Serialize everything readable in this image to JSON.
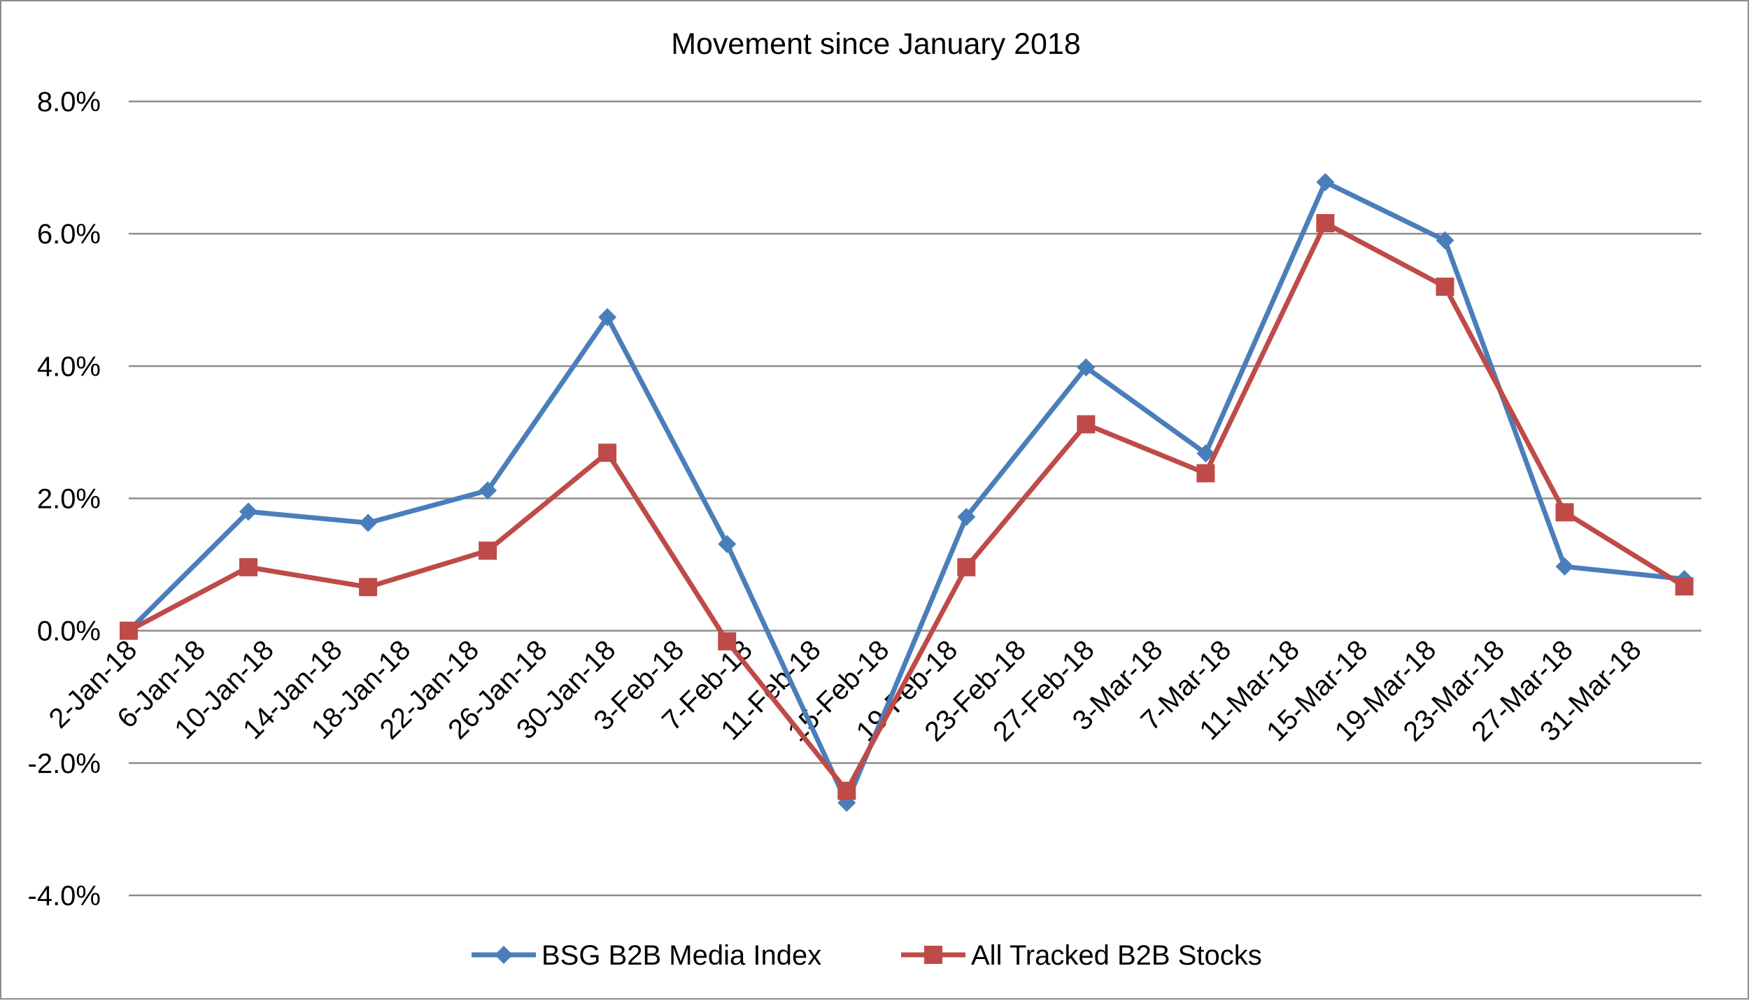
{
  "chart_data": {
    "type": "line",
    "title": "Movement since January 2018",
    "xlabel": "",
    "ylabel": "",
    "ylim": [
      -0.04,
      0.08
    ],
    "y_ticks": [
      -0.04,
      -0.02,
      0.0,
      0.02,
      0.04,
      0.06,
      0.08
    ],
    "y_tick_labels": [
      "-4.0%",
      "-2.0%",
      "0.0%",
      "2.0%",
      "4.0%",
      "6.0%",
      "8.0%"
    ],
    "x_axis_type": "date",
    "x_range": [
      "2018-01-02",
      "2018-04-04"
    ],
    "x_tick_dates": [
      "2018-01-02",
      "2018-01-06",
      "2018-01-10",
      "2018-01-14",
      "2018-01-18",
      "2018-01-22",
      "2018-01-26",
      "2018-01-30",
      "2018-02-03",
      "2018-02-07",
      "2018-02-11",
      "2018-02-15",
      "2018-02-19",
      "2018-02-23",
      "2018-02-27",
      "2018-03-03",
      "2018-03-07",
      "2018-03-11",
      "2018-03-15",
      "2018-03-19",
      "2018-03-23",
      "2018-03-27",
      "2018-03-31"
    ],
    "x_tick_labels": [
      "2-Jan-18",
      "6-Jan-18",
      "10-Jan-18",
      "14-Jan-18",
      "18-Jan-18",
      "22-Jan-18",
      "26-Jan-18",
      "30-Jan-18",
      "3-Feb-18",
      "7-Feb-18",
      "11-Feb-18",
      "15-Feb-18",
      "19-Feb-18",
      "23-Feb-18",
      "27-Feb-18",
      "3-Mar-18",
      "7-Mar-18",
      "11-Mar-18",
      "15-Mar-18",
      "19-Mar-18",
      "23-Mar-18",
      "27-Mar-18",
      "31-Mar-18"
    ],
    "grid": true,
    "legend_position": "bottom",
    "x": [
      "2018-01-02",
      "2018-01-09",
      "2018-01-16",
      "2018-01-23",
      "2018-01-30",
      "2018-02-06",
      "2018-02-13",
      "2018-02-20",
      "2018-02-27",
      "2018-03-06",
      "2018-03-13",
      "2018-03-20",
      "2018-03-27",
      "2018-04-03"
    ],
    "series": [
      {
        "name": "BSG B2B Media Index",
        "color": "#4a7ebb",
        "marker": "diamond",
        "values": [
          0.0,
          0.018,
          0.0163,
          0.0212,
          0.0474,
          0.0131,
          -0.026,
          0.0172,
          0.0398,
          0.0268,
          0.0678,
          0.059,
          0.0097,
          0.0078
        ]
      },
      {
        "name": "All Tracked B2B Stocks",
        "color": "#be4b48",
        "marker": "square",
        "values": [
          0.0,
          0.0096,
          0.0066,
          0.0121,
          0.0269,
          -0.0016,
          -0.0242,
          0.0096,
          0.0312,
          0.0238,
          0.0616,
          0.052,
          0.0179,
          0.0067
        ]
      }
    ]
  }
}
